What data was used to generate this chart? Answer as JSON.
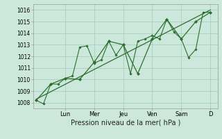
{
  "background_color": "#cce8dc",
  "grid_color": "#aacfbf",
  "line_color": "#2d6e2d",
  "marker_color": "#2d6e2d",
  "xlabel": "Pression niveau de la mer( hPa )",
  "ylim": [
    1007.5,
    1016.5
  ],
  "yticks": [
    1008,
    1009,
    1010,
    1011,
    1012,
    1013,
    1014,
    1015,
    1016
  ],
  "day_labels": [
    "Lun",
    "Mer",
    "Jeu",
    "Ven",
    "Sam",
    "D"
  ],
  "day_positions": [
    2,
    4,
    6,
    8,
    10,
    12
  ],
  "series1_x": [
    0,
    0.5,
    1.0,
    1.5,
    2.0,
    2.5,
    3.0,
    3.5,
    4.0,
    4.5,
    5.0,
    5.5,
    6.0,
    6.5,
    7.0,
    7.5,
    8.0,
    8.5,
    9.0,
    9.5,
    10.0,
    10.5,
    11.0,
    11.5,
    12.0
  ],
  "series1_y": [
    1008.2,
    1007.9,
    1009.6,
    1009.6,
    1010.1,
    1010.3,
    1012.8,
    1012.9,
    1011.4,
    1011.7,
    1013.3,
    1012.1,
    1013.0,
    1010.5,
    1013.3,
    1013.5,
    1013.8,
    1013.5,
    1015.2,
    1014.1,
    1013.5,
    1011.9,
    1012.6,
    1015.8,
    1015.8
  ],
  "series2_x": [
    0,
    1.0,
    2.0,
    3.0,
    4.0,
    5.0,
    6.0,
    7.0,
    8.0,
    9.0,
    10.0,
    11.0,
    12.0
  ],
  "series2_y": [
    1008.2,
    1009.6,
    1010.1,
    1010.0,
    1011.5,
    1013.3,
    1013.0,
    1010.5,
    1013.5,
    1015.2,
    1013.5,
    1015.0,
    1015.8
  ],
  "trend_x": [
    0,
    12
  ],
  "trend_y": [
    1008.3,
    1016.0
  ],
  "xlim": [
    -0.2,
    12.5
  ]
}
